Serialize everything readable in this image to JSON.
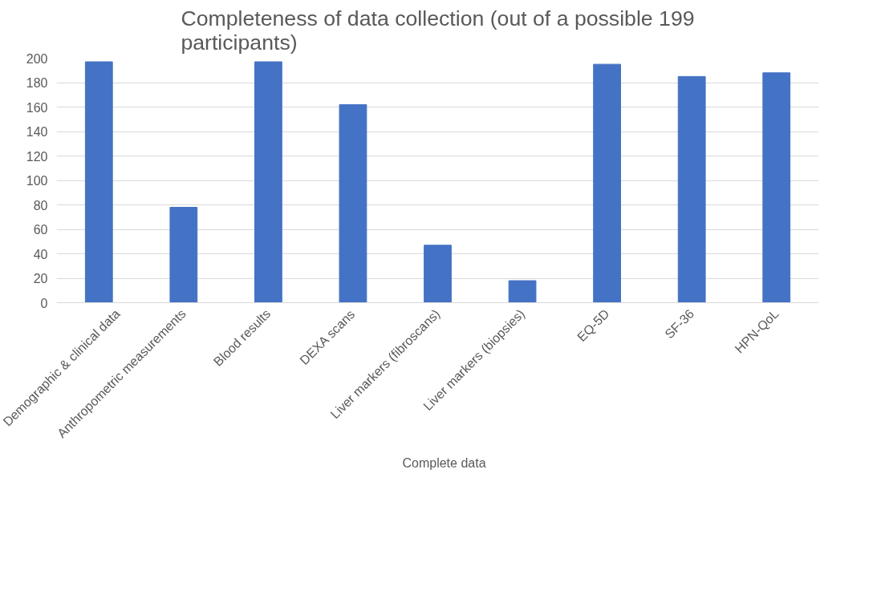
{
  "chart_data": {
    "type": "bar",
    "title": "Completeness of data collection (out of a possible 199 participants)",
    "categories": [
      "Demographic & clinical data",
      "Anthropometric measurements",
      "Blood results",
      "DEXA scans",
      "Liver markers (fibroscans)",
      "Liver markers (biopsies)",
      "EQ-5D",
      "SF-36",
      "HPN-QoL"
    ],
    "series": [
      {
        "name": "Complete data",
        "color": "#4472c4",
        "values": [
          197,
          78,
          197,
          162,
          47,
          18,
          195,
          185,
          188
        ]
      }
    ],
    "ylim": [
      0,
      200
    ],
    "yticks": [
      0,
      20,
      40,
      60,
      80,
      100,
      120,
      140,
      160,
      180,
      200
    ],
    "grid": "y",
    "legend": "bottom"
  }
}
